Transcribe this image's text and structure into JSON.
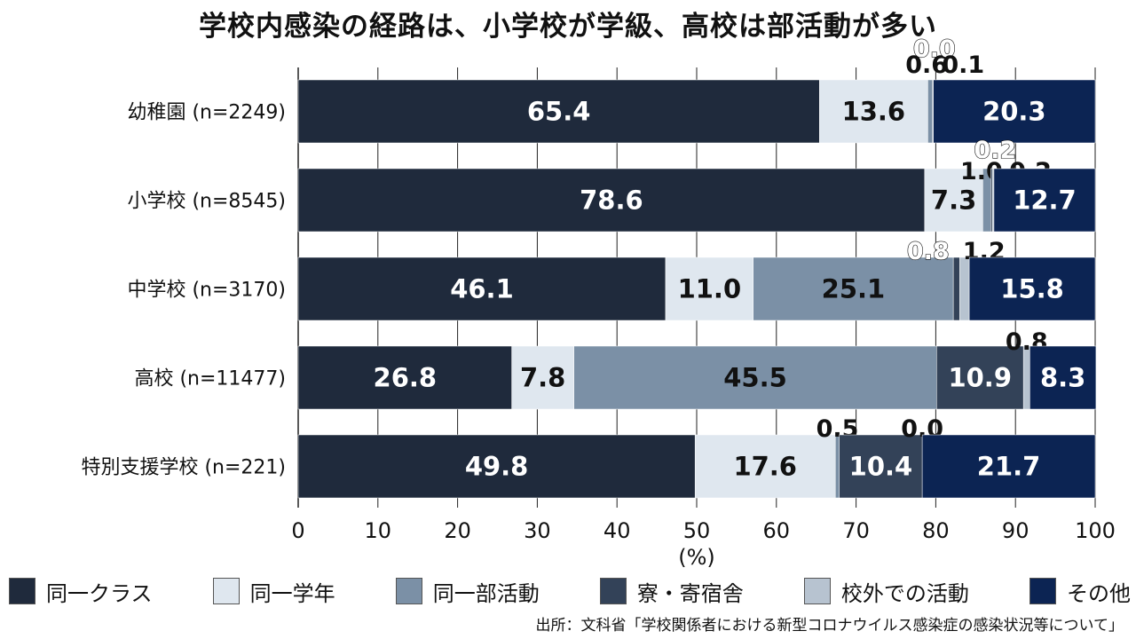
{
  "chart_data": {
    "type": "bar",
    "orientation": "horizontal",
    "stacked": true,
    "title": "学校内感染の経路は、小学校が学級、高校は部活動が多い",
    "xlabel": "(%)",
    "ylabel": "",
    "xlim": [
      0,
      100
    ],
    "xticks": [
      "0",
      "10",
      "20",
      "30",
      "40",
      "50",
      "60",
      "70",
      "80",
      "90",
      "100"
    ],
    "categories": [
      "幼稚園 (n=2249)",
      "小学校 (n=8545)",
      "中学校 (n=3170)",
      "高校 (n=11477)",
      "特別支援学校 (n=221)"
    ],
    "series": [
      {
        "name": "同一クラス",
        "color": "#1f2a3c",
        "label_color": "#ffffff",
        "values": [
          65.4,
          78.6,
          46.1,
          26.8,
          49.8
        ],
        "labels": [
          "65.4",
          "78.6",
          "46.1",
          "26.8",
          "49.8"
        ]
      },
      {
        "name": "同一学年",
        "color": "#dfe7ef",
        "label_color": "#111111",
        "values": [
          13.6,
          7.3,
          11.0,
          7.8,
          17.6
        ],
        "labels": [
          "13.6",
          "7.3",
          "11.0",
          "7.8",
          "17.6"
        ]
      },
      {
        "name": "同一部活動",
        "color": "#7b90a6",
        "label_color": "#111111",
        "values": [
          0.6,
          1.0,
          25.1,
          45.5,
          0.5
        ],
        "labels": [
          "0.6",
          "1.0",
          "25.1",
          "45.5",
          "0.5"
        ]
      },
      {
        "name": "寮・寄宿舎",
        "color": "#334258",
        "label_color": "#ffffff",
        "values": [
          0.0,
          0.2,
          0.8,
          10.9,
          10.4
        ],
        "labels": [
          "0.0",
          "0.2",
          "0.8",
          "10.9",
          "10.4"
        ]
      },
      {
        "name": "校外での活動",
        "color": "#b7c3d0",
        "label_color": "#111111",
        "values": [
          0.1,
          0.2,
          1.2,
          0.8,
          0.0
        ],
        "labels": [
          "0.1",
          "0.2",
          "1.2",
          "0.8",
          "0.0"
        ]
      },
      {
        "name": "その他",
        "color": "#0c2453",
        "label_color": "#ffffff",
        "values": [
          20.3,
          12.7,
          15.8,
          8.3,
          21.7
        ],
        "labels": [
          "20.3",
          "12.7",
          "15.8",
          "8.3",
          "21.7"
        ]
      }
    ]
  },
  "source": "出所：文科省「学校関係者における新型コロナウイルス感染症の感染状況等について」"
}
